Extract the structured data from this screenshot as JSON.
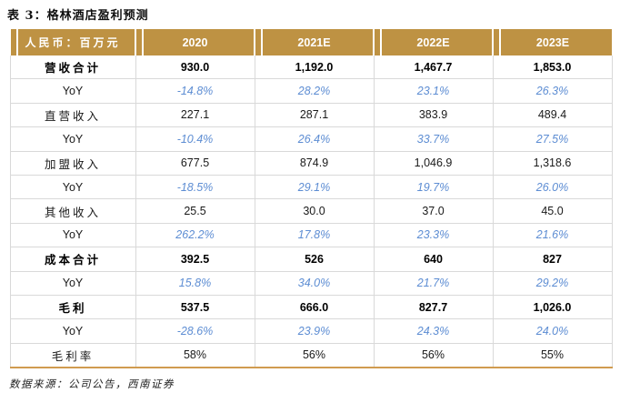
{
  "title": "表 3：格林酒店盈利预测",
  "source_note": "数据来源：公司公告，西南证券",
  "colors": {
    "header_bg": "#BE9243",
    "header_text": "#FFFFFF",
    "yoy_blue": "#5D8DD3",
    "grid_gray": "#D9D9D9",
    "bottom_rule_gold": "#D09B4F"
  },
  "table": {
    "header": [
      "人民币：百万元",
      "2020",
      "2021E",
      "2022E",
      "2023E"
    ],
    "rows": [
      {
        "label": "营收合计",
        "values": [
          "930.0",
          "1,192.0",
          "1,467.7",
          "1,853.0"
        ],
        "style": "bold"
      },
      {
        "label": "YoY",
        "values": [
          "-14.8%",
          "28.2%",
          "23.1%",
          "26.3%"
        ],
        "style": "yoy"
      },
      {
        "label": "直营收入",
        "values": [
          "227.1",
          "287.1",
          "383.9",
          "489.4"
        ],
        "style": "normal"
      },
      {
        "label": "YoY",
        "values": [
          "-10.4%",
          "26.4%",
          "33.7%",
          "27.5%"
        ],
        "style": "yoy"
      },
      {
        "label": "加盟收入",
        "values": [
          "677.5",
          "874.9",
          "1,046.9",
          "1,318.6"
        ],
        "style": "normal"
      },
      {
        "label": "YoY",
        "values": [
          "-18.5%",
          "29.1%",
          "19.7%",
          "26.0%"
        ],
        "style": "yoy"
      },
      {
        "label": "其他收入",
        "values": [
          "25.5",
          "30.0",
          "37.0",
          "45.0"
        ],
        "style": "normal"
      },
      {
        "label": "YoY",
        "values": [
          "262.2%",
          "17.8%",
          "23.3%",
          "21.6%"
        ],
        "style": "yoy"
      },
      {
        "label": "成本合计",
        "values": [
          "392.5",
          "526",
          "640",
          "827"
        ],
        "style": "bold"
      },
      {
        "label": "YoY",
        "values": [
          "15.8%",
          "34.0%",
          "21.7%",
          "29.2%"
        ],
        "style": "yoy"
      },
      {
        "label": "毛利",
        "values": [
          "537.5",
          "666.0",
          "827.7",
          "1,026.0"
        ],
        "style": "bold"
      },
      {
        "label": "YoY",
        "values": [
          "-28.6%",
          "23.9%",
          "24.3%",
          "24.0%"
        ],
        "style": "yoy"
      },
      {
        "label": "毛利率",
        "values": [
          "58%",
          "56%",
          "56%",
          "55%"
        ],
        "style": "normal"
      }
    ]
  }
}
